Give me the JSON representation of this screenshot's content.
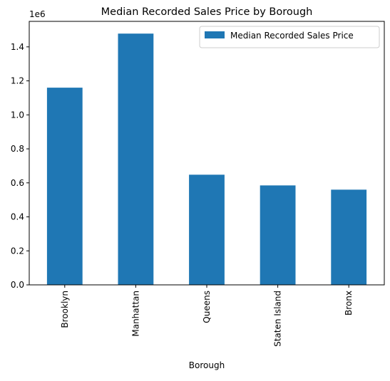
{
  "chart_data": {
    "type": "bar",
    "title": "Median Recorded Sales Price by Borough",
    "xlabel": "Borough",
    "ylabel": "",
    "y_offset_label": "1e6",
    "categories": [
      "Brooklyn",
      "Manhattan",
      "Queens",
      "Staten Island",
      "Bronx"
    ],
    "series": [
      {
        "name": "Median Recorded Sales Price",
        "values": [
          1160000,
          1478000,
          648000,
          585000,
          560000
        ],
        "color": "#1f77b4"
      }
    ],
    "ylim": [
      0,
      1550000
    ],
    "yticks": [
      0,
      200000,
      400000,
      600000,
      800000,
      1000000,
      1200000,
      1400000
    ],
    "ytick_labels": [
      "0.0",
      "0.2",
      "0.4",
      "0.6",
      "0.8",
      "1.0",
      "1.2",
      "1.4"
    ],
    "grid": false,
    "legend_position": "top-right"
  }
}
